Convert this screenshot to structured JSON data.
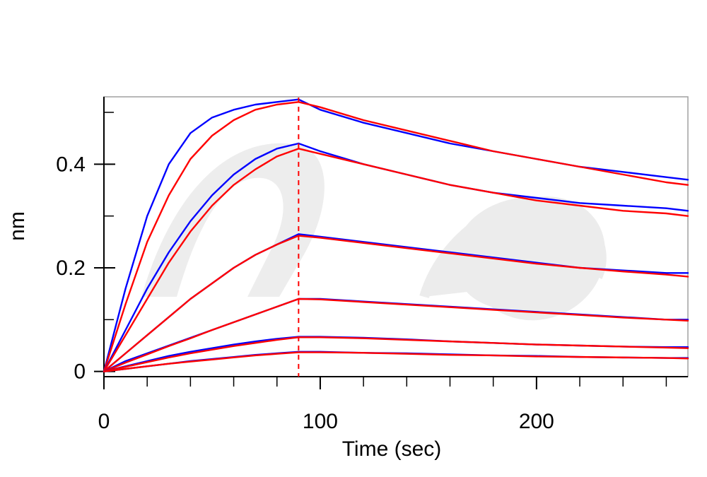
{
  "chart_data": {
    "type": "line",
    "title": "",
    "xlabel": "Time (sec)",
    "ylabel": "nm",
    "xlim": [
      0,
      270
    ],
    "ylim": [
      -0.01,
      0.53
    ],
    "x_ticks": [
      0,
      100,
      200
    ],
    "x_tick_labels": [
      "0",
      "100",
      "200"
    ],
    "y_ticks": [
      0,
      0.2,
      0.4
    ],
    "y_tick_labels": [
      "0",
      "0.2",
      "0.4"
    ],
    "x_minor_step": 20,
    "y_minor_step": 0.1,
    "grid": false,
    "legend": "none",
    "association_end": 90,
    "divider_style": "red dashed vertical line",
    "colors": {
      "measured": "#0000ff",
      "fitted": "#ff0000",
      "axes": "#000000",
      "frame": "#a0a0a0"
    },
    "series": [
      {
        "kind": "measured",
        "x": [
          0,
          10,
          20,
          30,
          40,
          50,
          60,
          70,
          80,
          90,
          100,
          120,
          140,
          160,
          180,
          200,
          220,
          240,
          260,
          270
        ],
        "y": [
          0.0,
          0.16,
          0.3,
          0.4,
          0.46,
          0.49,
          0.505,
          0.515,
          0.52,
          0.525,
          0.505,
          0.48,
          0.46,
          0.44,
          0.425,
          0.41,
          0.395,
          0.385,
          0.375,
          0.37
        ]
      },
      {
        "kind": "fitted",
        "x": [
          0,
          10,
          20,
          30,
          40,
          50,
          60,
          70,
          80,
          90,
          100,
          120,
          140,
          160,
          180,
          200,
          220,
          240,
          260,
          270
        ],
        "y": [
          0.0,
          0.13,
          0.25,
          0.34,
          0.41,
          0.455,
          0.485,
          0.505,
          0.515,
          0.52,
          0.51,
          0.485,
          0.465,
          0.445,
          0.425,
          0.41,
          0.395,
          0.38,
          0.365,
          0.36
        ]
      },
      {
        "kind": "measured",
        "x": [
          0,
          10,
          20,
          30,
          40,
          50,
          60,
          70,
          80,
          90,
          100,
          120,
          140,
          160,
          180,
          200,
          220,
          240,
          260,
          270
        ],
        "y": [
          0.0,
          0.08,
          0.16,
          0.23,
          0.29,
          0.34,
          0.38,
          0.41,
          0.43,
          0.44,
          0.425,
          0.4,
          0.38,
          0.36,
          0.345,
          0.335,
          0.325,
          0.32,
          0.315,
          0.31
        ]
      },
      {
        "kind": "fitted",
        "x": [
          0,
          10,
          20,
          30,
          40,
          50,
          60,
          70,
          80,
          90,
          100,
          120,
          140,
          160,
          180,
          200,
          220,
          240,
          260,
          270
        ],
        "y": [
          0.0,
          0.07,
          0.14,
          0.21,
          0.27,
          0.32,
          0.36,
          0.39,
          0.415,
          0.43,
          0.42,
          0.4,
          0.38,
          0.36,
          0.345,
          0.33,
          0.32,
          0.31,
          0.305,
          0.3
        ]
      },
      {
        "kind": "measured",
        "x": [
          0,
          10,
          20,
          30,
          40,
          50,
          60,
          70,
          80,
          90,
          100,
          120,
          140,
          160,
          180,
          200,
          220,
          240,
          260,
          270
        ],
        "y": [
          0.0,
          0.035,
          0.07,
          0.105,
          0.14,
          0.17,
          0.2,
          0.225,
          0.245,
          0.265,
          0.26,
          0.25,
          0.24,
          0.23,
          0.22,
          0.21,
          0.2,
          0.195,
          0.19,
          0.19
        ]
      },
      {
        "kind": "fitted",
        "x": [
          0,
          10,
          20,
          30,
          40,
          50,
          60,
          70,
          80,
          90,
          100,
          120,
          140,
          160,
          180,
          200,
          220,
          240,
          260,
          270
        ],
        "y": [
          0.0,
          0.035,
          0.07,
          0.105,
          0.14,
          0.17,
          0.2,
          0.225,
          0.245,
          0.262,
          0.258,
          0.248,
          0.238,
          0.228,
          0.218,
          0.208,
          0.2,
          0.193,
          0.187,
          0.183
        ]
      },
      {
        "kind": "measured",
        "x": [
          0,
          10,
          20,
          30,
          40,
          50,
          60,
          70,
          80,
          90,
          100,
          120,
          140,
          160,
          180,
          200,
          220,
          240,
          260,
          270
        ],
        "y": [
          0.0,
          0.02,
          0.035,
          0.05,
          0.065,
          0.08,
          0.095,
          0.11,
          0.125,
          0.14,
          0.14,
          0.135,
          0.13,
          0.125,
          0.12,
          0.115,
          0.11,
          0.105,
          0.1,
          0.1
        ]
      },
      {
        "kind": "fitted",
        "x": [
          0,
          10,
          20,
          30,
          40,
          50,
          60,
          70,
          80,
          90,
          100,
          120,
          140,
          160,
          180,
          200,
          220,
          240,
          260,
          270
        ],
        "y": [
          0.0,
          0.017,
          0.033,
          0.049,
          0.064,
          0.08,
          0.095,
          0.11,
          0.125,
          0.14,
          0.139,
          0.134,
          0.129,
          0.124,
          0.119,
          0.114,
          0.109,
          0.104,
          0.1,
          0.098
        ]
      },
      {
        "kind": "measured",
        "x": [
          0,
          10,
          20,
          30,
          40,
          50,
          60,
          70,
          80,
          90,
          100,
          120,
          140,
          160,
          180,
          200,
          220,
          240,
          260,
          270
        ],
        "y": [
          0.0,
          0.01,
          0.02,
          0.03,
          0.038,
          0.045,
          0.052,
          0.058,
          0.063,
          0.067,
          0.067,
          0.065,
          0.062,
          0.058,
          0.055,
          0.052,
          0.05,
          0.048,
          0.047,
          0.047
        ]
      },
      {
        "kind": "fitted",
        "x": [
          0,
          10,
          20,
          30,
          40,
          50,
          60,
          70,
          80,
          90,
          100,
          120,
          140,
          160,
          180,
          200,
          220,
          240,
          260,
          270
        ],
        "y": [
          0.0,
          0.009,
          0.018,
          0.027,
          0.035,
          0.042,
          0.049,
          0.055,
          0.061,
          0.066,
          0.066,
          0.064,
          0.061,
          0.058,
          0.055,
          0.052,
          0.05,
          0.048,
          0.046,
          0.045
        ]
      },
      {
        "kind": "measured",
        "x": [
          0,
          10,
          20,
          30,
          40,
          50,
          60,
          70,
          80,
          90,
          100,
          120,
          140,
          160,
          180,
          200,
          220,
          240,
          260,
          270
        ],
        "y": [
          0.0,
          0.005,
          0.01,
          0.015,
          0.02,
          0.024,
          0.028,
          0.032,
          0.035,
          0.038,
          0.038,
          0.036,
          0.035,
          0.033,
          0.031,
          0.03,
          0.028,
          0.027,
          0.026,
          0.026
        ]
      },
      {
        "kind": "fitted",
        "x": [
          0,
          10,
          20,
          30,
          40,
          50,
          60,
          70,
          80,
          90,
          100,
          120,
          140,
          160,
          180,
          200,
          220,
          240,
          260,
          270
        ],
        "y": [
          0.0,
          0.005,
          0.01,
          0.015,
          0.019,
          0.023,
          0.027,
          0.031,
          0.034,
          0.037,
          0.037,
          0.036,
          0.034,
          0.032,
          0.031,
          0.029,
          0.028,
          0.027,
          0.026,
          0.025
        ]
      }
    ]
  }
}
